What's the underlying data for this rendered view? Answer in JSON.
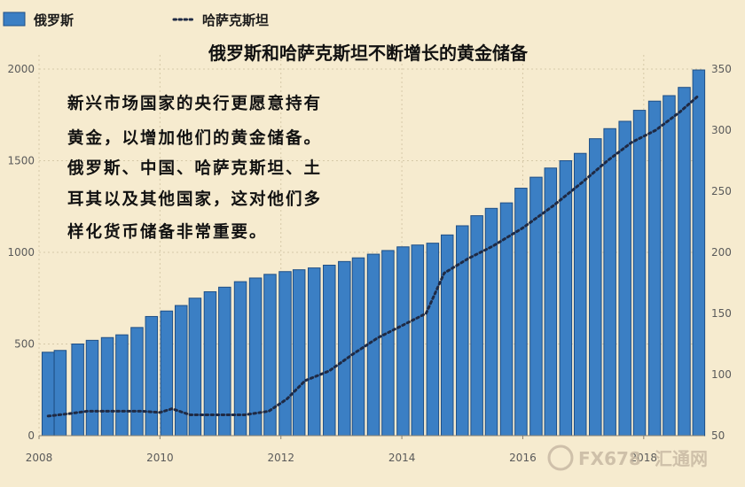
{
  "chart_data": {
    "type": "bar",
    "title": "俄罗斯和哈萨克斯坦不断增长的黄金储备",
    "x_range": [
      2008.0,
      2019.0
    ],
    "x_ticks": [
      "2008",
      "2010",
      "2012",
      "2014",
      "2016",
      "2018"
    ],
    "y_left": {
      "range": [
        0,
        2000
      ],
      "ticks": [
        "0",
        "500",
        "1000",
        "1500",
        "2000"
      ]
    },
    "y_right": {
      "range": [
        50,
        350
      ],
      "ticks": [
        "50",
        "100",
        "150",
        "200",
        "250",
        "300",
        "350"
      ]
    },
    "legend": {
      "position": "top-left"
    },
    "series": [
      {
        "name": "俄罗斯",
        "type": "bar",
        "axis": "left",
        "color": "#3b7fc4",
        "x": [
          2008.15,
          2008.35,
          2008.64,
          2008.88,
          2009.13,
          2009.37,
          2009.62,
          2009.86,
          2010.11,
          2010.35,
          2010.58,
          2010.83,
          2011.07,
          2011.33,
          2011.58,
          2011.82,
          2012.07,
          2012.3,
          2012.55,
          2012.8,
          2013.05,
          2013.28,
          2013.53,
          2013.77,
          2014.02,
          2014.26,
          2014.51,
          2014.75,
          2015.0,
          2015.24,
          2015.48,
          2015.73,
          2015.97,
          2016.22,
          2016.46,
          2016.71,
          2016.95,
          2017.2,
          2017.44,
          2017.69,
          2017.93,
          2018.18,
          2018.42,
          2018.67,
          2018.91
        ],
        "values": [
          455,
          465,
          500,
          520,
          535,
          550,
          590,
          650,
          680,
          710,
          750,
          785,
          810,
          840,
          860,
          880,
          895,
          905,
          915,
          930,
          950,
          970,
          990,
          1010,
          1030,
          1040,
          1050,
          1095,
          1145,
          1200,
          1240,
          1270,
          1350,
          1410,
          1460,
          1500,
          1540,
          1620,
          1675,
          1715,
          1775,
          1825,
          1855,
          1900,
          1995
        ]
      },
      {
        "name": "哈萨克斯坦",
        "type": "line",
        "axis": "right",
        "style": "dotted",
        "color": "#1f2a44",
        "x": [
          2008.15,
          2008.5,
          2008.8,
          2009.3,
          2009.7,
          2010.0,
          2010.2,
          2010.5,
          2011.0,
          2011.4,
          2011.8,
          2012.1,
          2012.4,
          2012.8,
          2013.2,
          2013.6,
          2014.0,
          2014.4,
          2014.7,
          2015.1,
          2015.5,
          2016.0,
          2016.5,
          2017.0,
          2017.4,
          2017.8,
          2018.2,
          2018.6,
          2018.9
        ],
        "values": [
          66,
          68,
          70,
          70,
          70,
          69,
          72,
          67,
          67,
          67,
          70,
          80,
          95,
          103,
          117,
          130,
          140,
          150,
          183,
          195,
          205,
          220,
          238,
          258,
          275,
          290,
          300,
          315,
          328
        ]
      }
    ],
    "annotation": [
      "新兴市场国家的央行更愿意持有",
      "黄金，以增加他们的黄金储备。",
      "俄罗斯、中国、哈萨克斯坦、土",
      "耳其以及其他国家，这对他们多",
      "样化货币储备非常重要。"
    ],
    "watermark": {
      "text_a": "FX678",
      "text_b": "汇通网"
    }
  }
}
